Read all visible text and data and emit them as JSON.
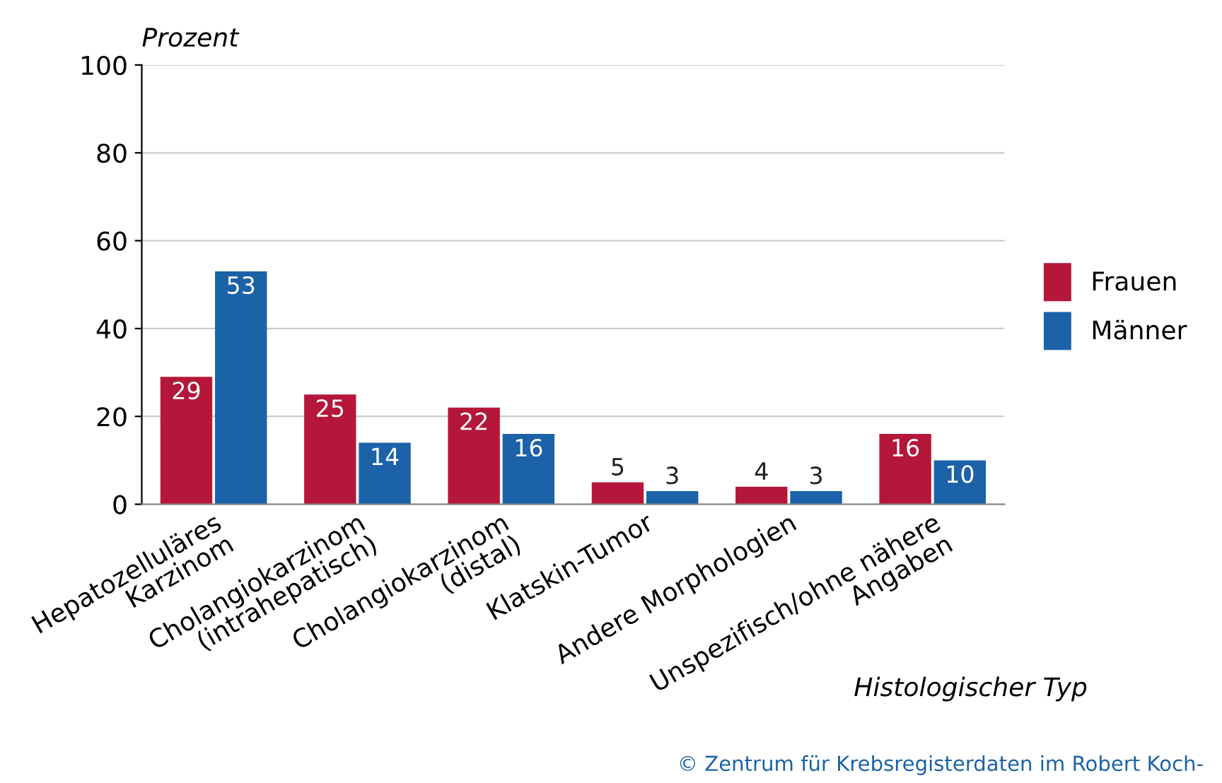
{
  "chart_data": {
    "type": "bar",
    "ylabel": "Prozent",
    "xlabel": "Histologischer Typ",
    "categories": [
      "Hepatozelluläres\nKarzinom",
      "Cholangiokarzinom\n(intrahepatisch)",
      "Cholangiokarzinom\n(distal)",
      "Klatskin-Tumor",
      "Andere Morphologien",
      "Unspezifisch/ohne nähere\nAngaben"
    ],
    "series": [
      {
        "name": "Frauen",
        "color": "#b5173b",
        "values": [
          29,
          25,
          22,
          5,
          4,
          16
        ]
      },
      {
        "name": "Männer",
        "color": "#1b62a8",
        "values": [
          53,
          14,
          16,
          3,
          3,
          10
        ]
      }
    ],
    "ylim": [
      0,
      100
    ],
    "yticks": [
      0,
      20,
      40,
      60,
      80,
      100
    ],
    "grid": "y",
    "legend": "right",
    "data_labels": true,
    "annotations": [
      "© Zentrum für Krebsregisterdaten im Robert Koch-"
    ]
  }
}
